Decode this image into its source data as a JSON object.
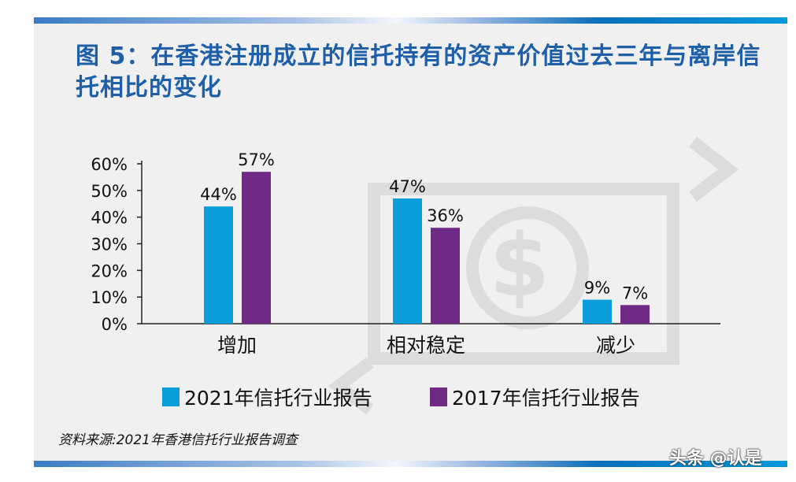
{
  "watermark": "头条 @认是",
  "source": "资料来源:2021年香港信托行业报告调查",
  "colors": {
    "title": "#1f5fa8",
    "series_2021": "#0a9fdc",
    "series_2017": "#6e2a84"
  },
  "chart_data": {
    "type": "bar",
    "title": "图 5：在香港注册成立的信托持有的资产价值过去三年与离岸信托相比的变化",
    "categories": [
      "增加",
      "相对稳定",
      "减少"
    ],
    "series": [
      {
        "name": "2021年信托行业报告",
        "values": [
          44,
          47,
          9
        ],
        "labels": [
          "44%",
          "47%",
          "9%"
        ]
      },
      {
        "name": "2017年信托行业报告",
        "values": [
          57,
          36,
          7
        ],
        "labels": [
          "57%",
          "36%",
          "7%"
        ]
      }
    ],
    "ylim": [
      0,
      60
    ],
    "yticks": [
      "0%",
      "10%",
      "20%",
      "30%",
      "40%",
      "50%",
      "60%"
    ],
    "grid": false,
    "legend": "bottom"
  }
}
